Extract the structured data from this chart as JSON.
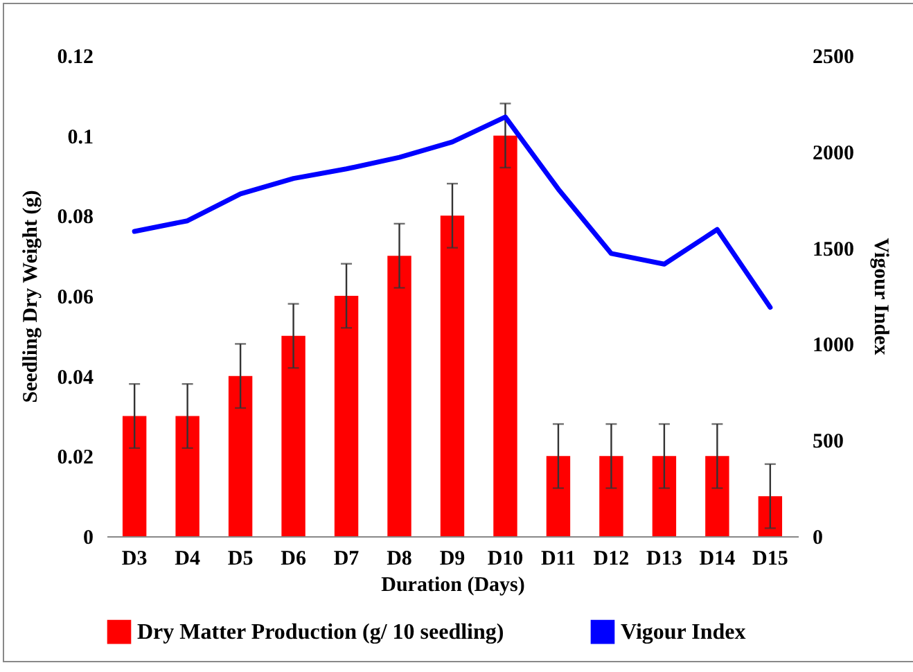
{
  "chart_data": {
    "type": "bar",
    "xlabel": "Duration (Days)",
    "ylabel": "Seedling Dry Weight (g)",
    "y2label": "Vigour Index",
    "categories": [
      "D3",
      "D4",
      "D5",
      "D6",
      "D7",
      "D8",
      "D9",
      "D10",
      "D11",
      "D12",
      "D13",
      "D14",
      "D15"
    ],
    "series": [
      {
        "name": "Dry Matter Production (g/ 10 seedling)",
        "color": "#ff0000",
        "values": [
          0.03,
          0.03,
          0.04,
          0.05,
          0.06,
          0.07,
          0.08,
          0.1,
          0.02,
          0.02,
          0.02,
          0.02,
          0.01
        ],
        "errors": [
          0.008,
          0.008,
          0.008,
          0.008,
          0.008,
          0.008,
          0.008,
          0.008,
          0.008,
          0.008,
          0.008,
          0.008,
          0.008
        ]
      },
      {
        "name": "Vigour Index",
        "type": "line",
        "axis": "y2",
        "color": "#0000ff",
        "values": [
          1585,
          1640,
          1780,
          1860,
          1910,
          1970,
          2050,
          2180,
          1805,
          1470,
          1415,
          1595,
          1190
        ]
      }
    ],
    "ylim": [
      0,
      0.12
    ],
    "yticks": [
      0,
      0.02,
      0.04,
      0.06,
      0.08,
      0.1,
      0.12
    ],
    "y2lim": [
      0,
      2500
    ],
    "y2ticks": [
      0,
      500,
      1000,
      1500,
      2000,
      2500
    ],
    "grid": false,
    "legend": "bottom"
  }
}
